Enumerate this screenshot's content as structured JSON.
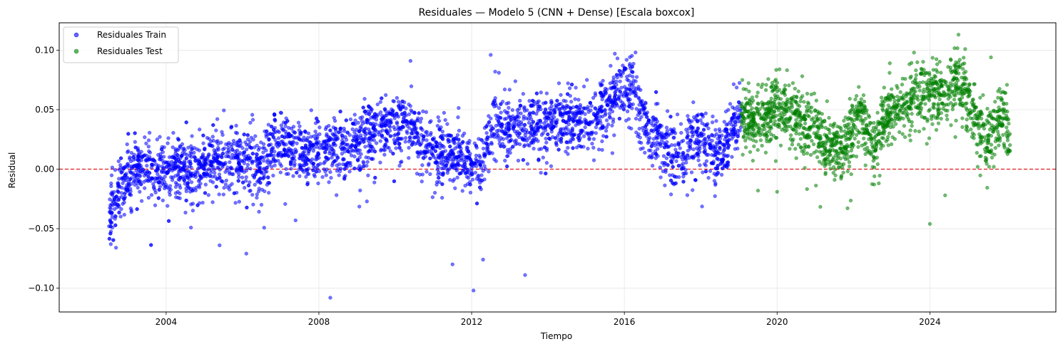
{
  "chart_data": {
    "type": "scatter",
    "title": "Residuales — Modelo 5 (CNN + Dense) [Escala boxcox]",
    "xlabel": "Tiempo",
    "ylabel": "Residual",
    "xlim": [
      2001.2,
      2027.3
    ],
    "ylim": [
      -0.12,
      0.123
    ],
    "x_ticks": [
      2004,
      2008,
      2012,
      2016,
      2020,
      2024
    ],
    "y_ticks": [
      -0.1,
      -0.05,
      0.0,
      0.05,
      0.1
    ],
    "y_tick_labels": [
      "−0.10",
      "−0.05",
      "0.00",
      "0.05",
      "0.10"
    ],
    "grid": true,
    "legend_position": "top-left",
    "reference_line": {
      "y": 0.0,
      "style": "dashed",
      "color": "#e41a1c"
    },
    "series": [
      {
        "name": "Residuales Train",
        "color": "#0000ff",
        "x_range": [
          2002.5,
          2019.05
        ],
        "trend": [
          [
            2002.5,
            -0.035
          ],
          [
            2002.8,
            -0.015
          ],
          [
            2003.3,
            0.003
          ],
          [
            2003.7,
            -0.002
          ],
          [
            2004.2,
            0.003
          ],
          [
            2004.6,
            -0.003
          ],
          [
            2005.0,
            0.006
          ],
          [
            2005.5,
            0.01
          ],
          [
            2006.0,
            0.008
          ],
          [
            2006.5,
            0.003
          ],
          [
            2006.8,
            0.02
          ],
          [
            2007.3,
            0.018
          ],
          [
            2007.8,
            0.012
          ],
          [
            2008.4,
            0.015
          ],
          [
            2008.8,
            0.02
          ],
          [
            2009.3,
            0.028
          ],
          [
            2009.8,
            0.035
          ],
          [
            2010.3,
            0.04
          ],
          [
            2010.7,
            0.025
          ],
          [
            2011.0,
            0.018
          ],
          [
            2011.4,
            0.01
          ],
          [
            2011.8,
            0.008
          ],
          [
            2012.2,
            0.0
          ],
          [
            2012.6,
            0.038
          ],
          [
            2013.2,
            0.038
          ],
          [
            2013.8,
            0.037
          ],
          [
            2014.3,
            0.04
          ],
          [
            2014.8,
            0.04
          ],
          [
            2015.3,
            0.045
          ],
          [
            2015.8,
            0.065
          ],
          [
            2016.2,
            0.065
          ],
          [
            2016.6,
            0.035
          ],
          [
            2017.0,
            0.025
          ],
          [
            2017.5,
            0.008
          ],
          [
            2018.0,
            0.028
          ],
          [
            2018.5,
            0.01
          ],
          [
            2019.05,
            0.05
          ]
        ],
        "outliers": [
          [
            2008.3,
            -0.108
          ],
          [
            2012.05,
            -0.102
          ],
          [
            2013.4,
            -0.089
          ],
          [
            2012.5,
            0.096
          ],
          [
            2010.4,
            0.091
          ],
          [
            2015.75,
            0.097
          ],
          [
            2006.1,
            -0.071
          ],
          [
            2005.4,
            -0.064
          ],
          [
            2011.5,
            -0.08
          ],
          [
            2012.3,
            -0.076
          ],
          [
            2002.55,
            -0.063
          ]
        ]
      },
      {
        "name": "Residuales Test",
        "color": "#008000",
        "x_range": [
          2019.05,
          2026.1
        ],
        "trend": [
          [
            2019.05,
            0.045
          ],
          [
            2019.5,
            0.04
          ],
          [
            2020.0,
            0.055
          ],
          [
            2020.5,
            0.045
          ],
          [
            2021.0,
            0.035
          ],
          [
            2021.4,
            0.015
          ],
          [
            2021.8,
            0.02
          ],
          [
            2022.2,
            0.045
          ],
          [
            2022.5,
            0.02
          ],
          [
            2022.9,
            0.045
          ],
          [
            2023.3,
            0.055
          ],
          [
            2023.7,
            0.065
          ],
          [
            2024.2,
            0.06
          ],
          [
            2024.7,
            0.075
          ],
          [
            2025.1,
            0.05
          ],
          [
            2025.5,
            0.02
          ],
          [
            2025.9,
            0.045
          ],
          [
            2026.1,
            0.03
          ]
        ],
        "outliers": [
          [
            2024.75,
            0.113
          ],
          [
            2024.0,
            -0.046
          ],
          [
            2020.0,
            -0.019
          ],
          [
            2019.5,
            -0.018
          ],
          [
            2024.4,
            -0.022
          ],
          [
            2025.6,
            0.094
          ]
        ]
      }
    ]
  }
}
